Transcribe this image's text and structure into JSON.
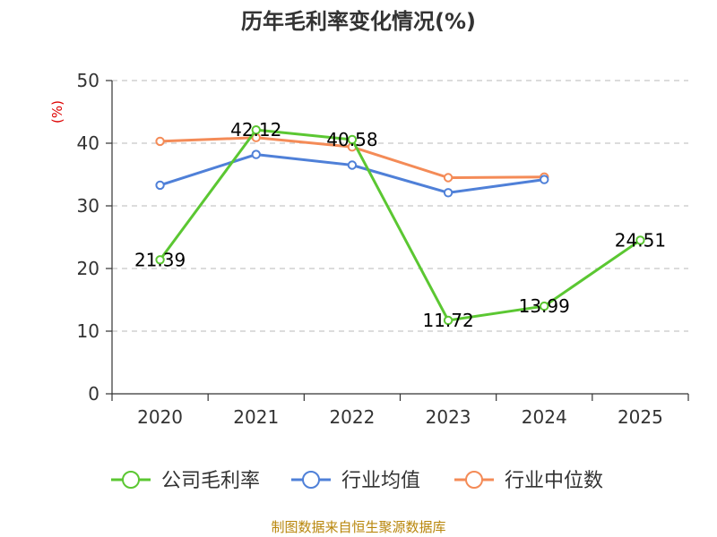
{
  "chart_data": {
    "type": "line",
    "title": "历年毛利率变化情况(%)",
    "ylabel": "(%)",
    "xlabel": "",
    "categories": [
      "2020",
      "2021",
      "2022",
      "2023",
      "2024",
      "2025"
    ],
    "ylim": [
      0,
      50
    ],
    "yticks": [
      0,
      10,
      20,
      30,
      40,
      50
    ],
    "grid": true,
    "legend_position": "bottom",
    "series": [
      {
        "name": "公司毛利率",
        "color": "#5bc732",
        "values": [
          21.39,
          42.12,
          40.58,
          11.72,
          13.99,
          24.51
        ],
        "labels": [
          "21.39",
          "42.12",
          "40.58",
          "11.72",
          "13.99",
          "24.51"
        ]
      },
      {
        "name": "行业均值",
        "color": "#4f80d8",
        "values": [
          33.3,
          38.2,
          36.5,
          32.1,
          34.2,
          null
        ]
      },
      {
        "name": "行业中位数",
        "color": "#f48b57",
        "values": [
          40.3,
          40.9,
          39.4,
          34.5,
          34.6,
          null
        ]
      }
    ]
  },
  "source": "制图数据来自恒生聚源数据库"
}
